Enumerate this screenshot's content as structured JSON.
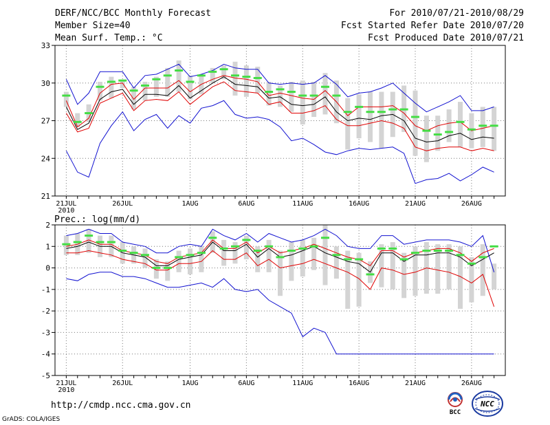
{
  "header": {
    "title": "DERF/NCC/BCC Monthly Forecast",
    "member_size": "Member Size=40",
    "variable": "Mean Surf. Temp.: °C",
    "period": "For 2010/07/21-2010/08/29",
    "fcst_started": "Fcst Started Refer Date 2010/07/20",
    "fcst_produced": "Fcst Produced Date 2010/07/21"
  },
  "footer": {
    "url": "http://cmdp.ncc.cma.gov.cn",
    "grads": "GrADS: COLA/IGES",
    "logo_left_text": "BCC",
    "logo_right_text": "NCC"
  },
  "colors": {
    "max_min": "#1010d0",
    "percentile": "#e00000",
    "median": "#000000",
    "box": "#d4d4d4",
    "mean_marker": "#44dd44"
  },
  "chart_data": [
    {
      "type": "line",
      "title": "Mean Surf. Temp.: °C",
      "days": 39,
      "x_tick_labels": [
        "21JUL",
        "26JUL",
        "1AUG",
        "6AUG",
        "11AUG",
        "16AUG",
        "21AUG",
        "26AUG"
      ],
      "x_tick_days": [
        1,
        6,
        12,
        17,
        22,
        27,
        32,
        37
      ],
      "x_year_label": "2010",
      "ylim": [
        21,
        33
      ],
      "y_ticks": [
        21,
        24,
        27,
        30,
        33
      ],
      "grid": true,
      "series": [
        {
          "name": "max",
          "values": [
            30.3,
            28.3,
            29.2,
            30.9,
            30.9,
            30.9,
            29.6,
            30.6,
            30.7,
            31.1,
            31.5,
            30.5,
            30.7,
            31.0,
            31.5,
            31.2,
            31.1,
            31.1,
            30.0,
            29.9,
            30.0,
            29.9,
            30.0,
            30.6,
            29.9,
            28.9,
            29.2,
            29.3,
            29.6,
            30.0,
            29.2,
            28.4,
            27.7,
            28.1,
            28.5,
            29.0,
            27.8,
            27.8,
            28.1
          ]
        },
        {
          "name": "p_high",
          "values": [
            28.6,
            26.5,
            27.2,
            29.2,
            29.9,
            30.0,
            28.7,
            29.6,
            29.6,
            29.6,
            30.2,
            29.3,
            29.9,
            30.3,
            30.6,
            30.4,
            30.3,
            30.1,
            29.0,
            29.2,
            29.0,
            28.8,
            28.7,
            29.4,
            28.5,
            27.4,
            28.1,
            28.1,
            28.1,
            28.2,
            27.6,
            26.6,
            26.2,
            26.6,
            26.8,
            26.9,
            26.2,
            26.4,
            26.6
          ]
        },
        {
          "name": "median",
          "values": [
            28.1,
            26.3,
            26.8,
            28.7,
            29.3,
            29.5,
            28.3,
            29.1,
            29.1,
            29.0,
            29.8,
            28.8,
            29.4,
            30.0,
            30.5,
            29.9,
            29.8,
            29.7,
            28.8,
            28.9,
            28.3,
            28.2,
            28.3,
            28.9,
            27.7,
            27.0,
            27.2,
            27.1,
            27.4,
            27.5,
            27.0,
            25.6,
            25.3,
            25.4,
            25.8,
            26.0,
            25.5,
            25.7,
            25.6
          ]
        },
        {
          "name": "p_low",
          "values": [
            27.6,
            26.1,
            26.4,
            28.4,
            28.8,
            29.2,
            27.8,
            28.6,
            28.7,
            28.6,
            29.3,
            28.3,
            29.0,
            29.7,
            30.1,
            29.4,
            29.3,
            29.2,
            28.3,
            28.5,
            27.6,
            27.6,
            27.8,
            28.2,
            27.1,
            26.6,
            26.6,
            26.8,
            27.0,
            26.8,
            26.4,
            24.9,
            24.6,
            24.8,
            24.9,
            24.9,
            24.6,
            24.8,
            24.6
          ]
        },
        {
          "name": "min",
          "values": [
            24.6,
            22.9,
            22.5,
            25.2,
            26.6,
            27.7,
            26.2,
            27.1,
            27.5,
            26.4,
            27.4,
            26.8,
            28.0,
            28.2,
            28.6,
            27.5,
            27.2,
            27.3,
            27.1,
            26.5,
            25.4,
            25.6,
            25.1,
            24.5,
            24.3,
            24.6,
            24.8,
            24.7,
            24.8,
            24.9,
            24.4,
            22.0,
            22.3,
            22.4,
            22.8,
            22.2,
            22.7,
            23.3,
            22.9
          ]
        },
        {
          "name": "mean",
          "values": [
            29.0,
            26.9,
            27.6,
            29.7,
            30.1,
            30.2,
            29.4,
            29.8,
            30.3,
            30.6,
            31.0,
            30.1,
            30.6,
            30.9,
            31.1,
            30.6,
            30.5,
            30.4,
            29.3,
            29.5,
            29.3,
            29.0,
            29.0,
            29.7,
            29.0,
            27.7,
            28.1,
            27.7,
            27.7,
            27.9,
            27.9,
            27.3,
            26.2,
            25.9,
            26.1,
            26.9,
            26.3,
            26.6,
            26.6
          ]
        },
        {
          "name": "box_top",
          "values": [
            29.3,
            27.6,
            28.3,
            30.1,
            30.5,
            30.2,
            29.7,
            30.1,
            30.5,
            31.2,
            31.8,
            30.6,
            30.7,
            31.2,
            31.4,
            31.7,
            31.4,
            31.3,
            30.1,
            29.8,
            30.1,
            30.2,
            30.1,
            30.8,
            30.2,
            28.8,
            29.1,
            29.3,
            29.3,
            29.3,
            29.8,
            29.4,
            27.4,
            27.4,
            27.9,
            28.5,
            27.6,
            28.1,
            28.1
          ]
        },
        {
          "name": "box_bottom",
          "values": [
            28.1,
            26.5,
            26.9,
            28.6,
            28.8,
            29.6,
            27.9,
            28.6,
            28.9,
            28.9,
            29.3,
            28.7,
            29.1,
            30.0,
            30.3,
            29.0,
            28.9,
            29.2,
            28.2,
            28.1,
            27.7,
            26.7,
            27.3,
            27.5,
            26.8,
            24.7,
            25.6,
            25.3,
            24.8,
            25.7,
            26.1,
            24.2,
            23.7,
            24.6,
            25.3,
            24.9,
            24.8,
            24.9,
            24.6
          ]
        }
      ]
    },
    {
      "type": "line",
      "title": "Prec.: log(mm/d)",
      "days": 39,
      "x_tick_labels": [
        "21JUL",
        "26JUL",
        "1AUG",
        "6AUG",
        "11AUG",
        "16AUG",
        "21AUG",
        "26AUG"
      ],
      "x_tick_days": [
        1,
        6,
        12,
        17,
        22,
        27,
        32,
        37
      ],
      "x_year_label": "2010",
      "ylim": [
        -5,
        2
      ],
      "y_ticks": [
        -5,
        -4,
        -3,
        -2,
        -1,
        0,
        1,
        2
      ],
      "grid": true,
      "series": [
        {
          "name": "max",
          "values": [
            1.5,
            1.6,
            1.8,
            1.6,
            1.6,
            1.2,
            1.1,
            1.0,
            0.7,
            0.7,
            1.0,
            1.1,
            1.0,
            1.8,
            1.5,
            1.3,
            1.6,
            1.2,
            1.6,
            1.4,
            1.2,
            1.3,
            1.5,
            1.8,
            1.5,
            1.0,
            0.9,
            0.9,
            1.5,
            1.5,
            1.1,
            1.2,
            1.3,
            1.3,
            1.3,
            1.2,
            1.0,
            1.5,
            -0.2
          ]
        },
        {
          "name": "p_high",
          "values": [
            1.0,
            1.1,
            1.3,
            1.1,
            1.1,
            0.8,
            0.7,
            0.6,
            0.3,
            0.2,
            0.5,
            0.6,
            0.7,
            1.3,
            0.9,
            0.9,
            1.2,
            0.7,
            1.0,
            0.7,
            0.8,
            0.9,
            1.1,
            0.9,
            0.7,
            0.5,
            0.4,
            0.1,
            0.8,
            0.8,
            0.5,
            0.7,
            0.8,
            0.9,
            0.9,
            0.7,
            0.3,
            0.7,
            0.9
          ]
        },
        {
          "name": "median",
          "values": [
            0.9,
            1.0,
            1.2,
            1.0,
            1.0,
            0.7,
            0.6,
            0.5,
            0.1,
            0.1,
            0.4,
            0.5,
            0.6,
            1.2,
            0.8,
            0.8,
            1.1,
            0.5,
            0.9,
            0.5,
            0.6,
            0.8,
            1.0,
            0.7,
            0.5,
            0.3,
            0.2,
            -0.2,
            0.7,
            0.7,
            0.3,
            0.6,
            0.6,
            0.7,
            0.7,
            0.5,
            0.1,
            0.4,
            0.7
          ]
        },
        {
          "name": "p_low",
          "values": [
            0.7,
            0.7,
            0.8,
            0.7,
            0.6,
            0.4,
            0.3,
            0.2,
            -0.1,
            -0.1,
            0.2,
            0.2,
            0.3,
            0.8,
            0.4,
            0.4,
            0.7,
            0.1,
            0.4,
            0.0,
            0.1,
            0.2,
            0.4,
            0.2,
            0.0,
            -0.2,
            -0.5,
            -1.0,
            0.0,
            -0.1,
            -0.3,
            -0.2,
            0.0,
            -0.1,
            -0.2,
            -0.4,
            -0.7,
            -0.3,
            -1.8
          ]
        },
        {
          "name": "min",
          "values": [
            -0.5,
            -0.6,
            -0.3,
            -0.2,
            -0.2,
            -0.4,
            -0.4,
            -0.5,
            -0.7,
            -0.9,
            -0.9,
            -0.8,
            -0.7,
            -0.9,
            -0.5,
            -1.0,
            -1.1,
            -1.0,
            -1.5,
            -1.8,
            -2.1,
            -3.2,
            -2.8,
            -3.0,
            -4.0,
            -4.0,
            -4.0,
            -4.0,
            -4.0,
            -4.0,
            -4.0,
            -4.0,
            -4.0,
            -4.0,
            -4.0,
            -4.0,
            -4.0,
            -4.0,
            -4.0
          ]
        },
        {
          "name": "mean",
          "values": [
            1.1,
            1.2,
            1.5,
            1.2,
            1.2,
            0.8,
            0.7,
            0.6,
            0.0,
            0.0,
            0.5,
            0.6,
            0.7,
            1.4,
            0.9,
            1.0,
            1.3,
            0.8,
            1.0,
            0.5,
            0.8,
            0.9,
            1.0,
            1.4,
            0.6,
            0.4,
            0.4,
            -0.3,
            0.9,
            0.9,
            0.4,
            0.7,
            0.8,
            0.8,
            0.8,
            0.6,
            0.2,
            0.5,
            1.0
          ]
        },
        {
          "name": "box_top",
          "values": [
            1.5,
            1.6,
            1.8,
            1.5,
            1.5,
            1.2,
            1.0,
            0.9,
            0.4,
            0.3,
            0.8,
            0.9,
            1.0,
            1.7,
            1.3,
            1.2,
            1.5,
            1.0,
            1.3,
            0.8,
            1.2,
            1.3,
            1.4,
            2.0,
            1.0,
            0.8,
            0.7,
            0.3,
            1.1,
            1.2,
            0.7,
            1.0,
            1.2,
            1.1,
            1.1,
            1.0,
            0.5,
            1.1,
            0.2
          ]
        },
        {
          "name": "box_bottom",
          "values": [
            0.6,
            0.6,
            0.7,
            0.5,
            0.5,
            0.2,
            0.2,
            0.0,
            -0.5,
            -0.6,
            -0.2,
            -0.3,
            -0.2,
            0.7,
            0.1,
            0.2,
            0.4,
            -0.2,
            -0.2,
            -1.3,
            -0.6,
            -0.4,
            -0.1,
            -0.8,
            -0.5,
            -1.9,
            -1.8,
            -0.7,
            -0.9,
            -1.0,
            -1.4,
            -1.3,
            -1.2,
            -1.2,
            -1.0,
            -1.9,
            -1.6,
            -1.3,
            -1.0
          ]
        }
      ]
    }
  ]
}
